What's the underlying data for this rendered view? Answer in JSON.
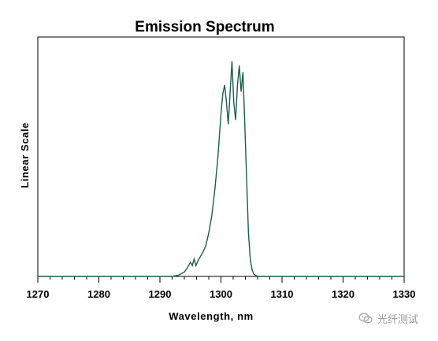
{
  "chart_data": {
    "type": "line",
    "title": "Emission Spectrum",
    "xlabel": "Wavelength, nm",
    "ylabel": "Linear Scale",
    "xlim": [
      1270,
      1330
    ],
    "ylim": [
      0,
      1
    ],
    "xticks": [
      1270,
      1280,
      1290,
      1300,
      1310,
      1320,
      1330
    ],
    "grid": false,
    "legend": "none",
    "line_color": "#1f5c4a",
    "series": [
      {
        "x": [
          1270,
          1290,
          1292,
          1293,
          1294,
          1294.5,
          1295,
          1295.3,
          1295.6,
          1295.9,
          1296.2,
          1296.6,
          1297,
          1297.5,
          1298,
          1298.5,
          1299,
          1299.5,
          1300,
          1300.3,
          1300.6,
          1300.9,
          1301.2,
          1301.5,
          1301.8,
          1302.1,
          1302.4,
          1302.7,
          1303,
          1303.3,
          1303.6,
          1303.9,
          1304.2,
          1304.5,
          1304.8,
          1305.1,
          1305.4,
          1305.8,
          1306.2,
          1308,
          1330
        ],
        "y": [
          0,
          0,
          0,
          0.005,
          0.02,
          0.04,
          0.065,
          0.05,
          0.08,
          0.05,
          0.07,
          0.09,
          0.11,
          0.14,
          0.2,
          0.28,
          0.4,
          0.55,
          0.75,
          0.84,
          0.88,
          0.8,
          0.7,
          0.85,
          0.99,
          0.8,
          0.72,
          0.88,
          0.97,
          0.85,
          0.94,
          0.7,
          0.45,
          0.2,
          0.08,
          0.03,
          0.01,
          0.003,
          0,
          0,
          0
        ]
      }
    ]
  },
  "watermark": {
    "text": "光纤测试",
    "icon": "wechat-icon"
  }
}
